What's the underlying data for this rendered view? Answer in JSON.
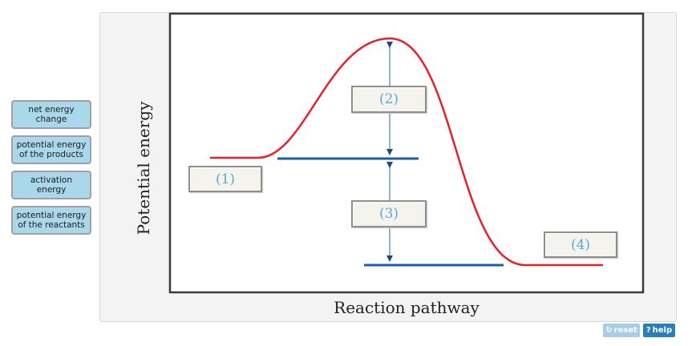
{
  "labels": [
    "net energy change",
    "potential energy of the products",
    "activation energy",
    "potential energy of the reactants"
  ],
  "diagram": {
    "ylabel": "Potential energy",
    "xlabel": "Reaction pathway",
    "slots": [
      "(1)",
      "(2)",
      "(3)",
      "(4)"
    ]
  },
  "buttons": {
    "reset": "reset",
    "help": "help",
    "reset_icon": "refresh-icon",
    "help_icon": "question-icon"
  },
  "colors": {
    "curve": "#e8202a",
    "levels": "#1a5fa8",
    "chip_bg": "#a9d8ea",
    "slot_text": "#5aa9d8"
  }
}
